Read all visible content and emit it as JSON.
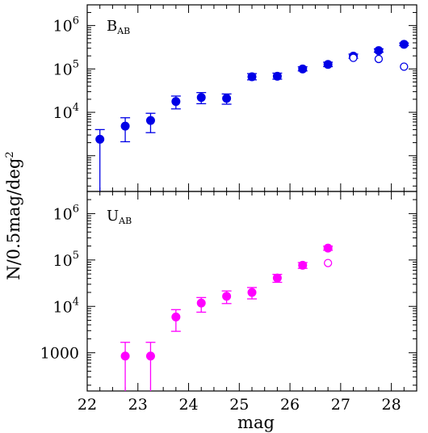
{
  "chart_data": [
    {
      "type": "scatter",
      "panel_label": "B",
      "panel_label_sub": "AB",
      "xlabel": "mag",
      "ylabel": "N/0.5mag/deg",
      "ylabel_sup": "2",
      "y_scale": "log",
      "xlim": [
        22.0,
        28.5
      ],
      "ylim": [
        150,
        3000000
      ],
      "color": "#0000e6",
      "y_ticks": [
        {
          "value": 10000,
          "base": "10",
          "exp": "4"
        },
        {
          "value": 100000,
          "base": "10",
          "exp": "5"
        },
        {
          "value": 1000000,
          "base": "10",
          "exp": "6"
        }
      ],
      "series": [
        {
          "marker": "filled-circle",
          "points": [
            {
              "x": 22.25,
              "y": 2400,
              "ylo": 100,
              "yhi": 4000
            },
            {
              "x": 22.75,
              "y": 4800,
              "ylo": 2100,
              "yhi": 7500
            },
            {
              "x": 23.25,
              "y": 6500,
              "ylo": 3400,
              "yhi": 9500
            },
            {
              "x": 23.75,
              "y": 17800,
              "ylo": 12000,
              "yhi": 23700
            },
            {
              "x": 24.25,
              "y": 22000,
              "ylo": 15800,
              "yhi": 28500
            },
            {
              "x": 24.75,
              "y": 21000,
              "ylo": 15400,
              "yhi": 26500
            },
            {
              "x": 25.25,
              "y": 66000,
              "ylo": 56000,
              "yhi": 78000
            },
            {
              "x": 25.75,
              "y": 68000,
              "ylo": 58000,
              "yhi": 80000
            },
            {
              "x": 26.25,
              "y": 100000,
              "ylo": 90000,
              "yhi": 112000
            },
            {
              "x": 26.75,
              "y": 127000,
              "ylo": 113000,
              "yhi": 143000
            },
            {
              "x": 27.25,
              "y": 197000,
              "ylo": 176000,
              "yhi": 220000
            },
            {
              "x": 27.75,
              "y": 265000,
              "ylo": 243000,
              "yhi": 290000
            },
            {
              "x": 28.25,
              "y": 370000,
              "ylo": 345000,
              "yhi": 395000
            }
          ]
        },
        {
          "marker": "open-circle",
          "points": [
            {
              "x": 27.25,
              "y": 180000
            },
            {
              "x": 27.75,
              "y": 170000
            },
            {
              "x": 28.25,
              "y": 113000
            }
          ]
        }
      ]
    },
    {
      "type": "scatter",
      "panel_label": "U",
      "panel_label_sub": "AB",
      "xlabel": "mag",
      "y_scale": "log",
      "xlim": [
        22.0,
        28.5
      ],
      "ylim": [
        150,
        3000000
      ],
      "color": "#ff00ff",
      "y_ticks": [
        {
          "value": 1000,
          "base": "1000",
          "exp": ""
        },
        {
          "value": 10000,
          "base": "10",
          "exp": "4"
        },
        {
          "value": 100000,
          "base": "10",
          "exp": "5"
        },
        {
          "value": 1000000,
          "base": "10",
          "exp": "6"
        }
      ],
      "series": [
        {
          "marker": "filled-circle",
          "points": [
            {
              "x": 22.75,
              "y": 850,
              "ylo": 100,
              "yhi": 1680
            },
            {
              "x": 23.25,
              "y": 850,
              "ylo": 100,
              "yhi": 1680
            },
            {
              "x": 23.75,
              "y": 5900,
              "ylo": 2900,
              "yhi": 8500
            },
            {
              "x": 24.25,
              "y": 11800,
              "ylo": 7500,
              "yhi": 15500
            },
            {
              "x": 24.75,
              "y": 16500,
              "ylo": 11500,
              "yhi": 21500
            },
            {
              "x": 25.25,
              "y": 20000,
              "ylo": 14500,
              "yhi": 25500
            },
            {
              "x": 25.75,
              "y": 41000,
              "ylo": 33000,
              "yhi": 49000
            },
            {
              "x": 26.25,
              "y": 77000,
              "ylo": 66000,
              "yhi": 88000
            },
            {
              "x": 26.75,
              "y": 180000,
              "ylo": 162000,
              "yhi": 199000
            }
          ]
        },
        {
          "marker": "open-circle",
          "points": [
            {
              "x": 26.75,
              "y": 86000
            }
          ]
        }
      ]
    }
  ],
  "x_ticks": [
    22,
    23,
    24,
    25,
    26,
    27,
    28
  ]
}
